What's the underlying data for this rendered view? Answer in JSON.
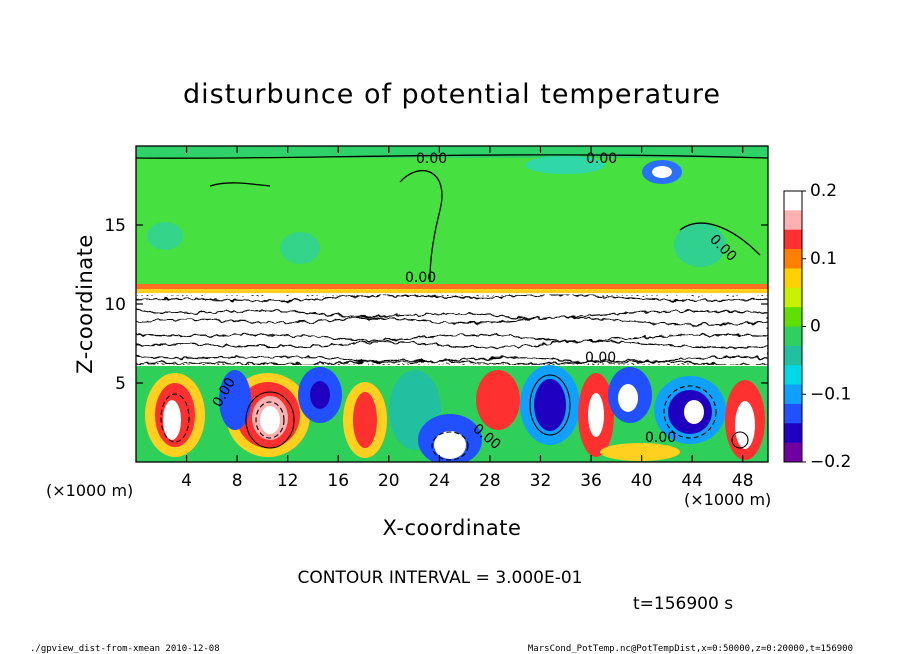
{
  "chart_data": {
    "type": "heatmap",
    "title": "disturbunce of potential temperature",
    "xlabel": "X-coordinate",
    "ylabel": "Z-coordinate",
    "x_unit_left": "(×1000 m)",
    "x_unit_right": "(×1000 m)",
    "xlim": [
      0,
      50
    ],
    "ylim": [
      0,
      20
    ],
    "x_ticks": [
      "4",
      "8",
      "12",
      "16",
      "20",
      "24",
      "28",
      "32",
      "36",
      "40",
      "44",
      "48"
    ],
    "y_ticks": [
      "5",
      "10",
      "15"
    ],
    "colorbar": {
      "range": [
        -0.2,
        0.2
      ],
      "tick_labels": [
        "0.2",
        "0.1",
        "0",
        "−0.1",
        "−0.2"
      ],
      "colors": [
        "#ffffff",
        "#ffb0b0",
        "#ff3030",
        "#ff8000",
        "#ffd000",
        "#c8f000",
        "#60e000",
        "#30d060",
        "#20c0a0",
        "#00d8e8",
        "#10a0ff",
        "#2050ff",
        "#2000c0",
        "#7000a0"
      ]
    },
    "contour_labels": [
      "0.00",
      "0.00",
      "0.00",
      "0.00",
      "0.00",
      "0.00",
      "0.00",
      "0.00"
    ],
    "contour_interval": "CONTOUR INTERVAL = 3.000E-01",
    "time_label": "t=156900 s",
    "grid": false
  },
  "footer": {
    "left": "./gpview_dist-from-xmean  2010-12-08",
    "right": "MarsCond_PotTemp.nc@PotTempDist,x=0:50000,z=0:20000,t=156900"
  }
}
